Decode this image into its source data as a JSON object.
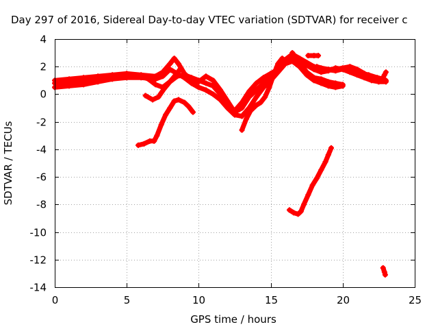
{
  "chart_data": {
    "type": "scatter",
    "title": "Day 297 of 2016, Sidereal Day-to-day VTEC variation (SDTVAR) for receiver c",
    "xlabel": "GPS time / hours",
    "ylabel": "SDTVAR / TECUs",
    "xlim": [
      0,
      25
    ],
    "ylim": [
      -14,
      4
    ],
    "xticks": [
      "0",
      "5",
      "10",
      "15",
      "20",
      "25"
    ],
    "yticks": [
      "4",
      "2",
      "0",
      "-2",
      "-4",
      "-6",
      "-8",
      "-10",
      "-12",
      "-14"
    ],
    "grid": true,
    "legend": "none",
    "marker_color": "#ff0000",
    "series": [
      {
        "points": [
          [
            0,
            1.0
          ],
          [
            1.0,
            1.1
          ],
          [
            2.0,
            1.2
          ],
          [
            3.0,
            1.3
          ],
          [
            4.0,
            1.4
          ],
          [
            5.0,
            1.5
          ],
          [
            6.0,
            1.4
          ],
          [
            7.0,
            1.3
          ],
          [
            7.5,
            1.6
          ],
          [
            8.0,
            2.2
          ],
          [
            8.3,
            2.6
          ],
          [
            8.6,
            2.2
          ],
          [
            9.0,
            1.5
          ],
          [
            9.5,
            1.0
          ],
          [
            10.0,
            0.9
          ],
          [
            10.5,
            1.3
          ],
          [
            11.0,
            1.0
          ],
          [
            11.5,
            0.3
          ],
          [
            12.0,
            -0.5
          ],
          [
            12.5,
            -1.3
          ],
          [
            13.0,
            -1.0
          ],
          [
            13.5,
            -0.2
          ],
          [
            14.0,
            0.3
          ],
          [
            14.5,
            0.8
          ],
          [
            15.0,
            1.3
          ],
          [
            15.5,
            1.9
          ],
          [
            16.0,
            2.4
          ],
          [
            16.5,
            2.6
          ],
          [
            17.0,
            2.4
          ],
          [
            17.5,
            2.1
          ],
          [
            18.0,
            1.8
          ],
          [
            18.5,
            1.6
          ],
          [
            19.0,
            1.7
          ],
          [
            19.5,
            1.9
          ],
          [
            20.0,
            1.8
          ],
          [
            20.5,
            1.6
          ],
          [
            21.0,
            1.4
          ],
          [
            21.5,
            1.2
          ],
          [
            22.0,
            1.0
          ],
          [
            22.5,
            0.9
          ],
          [
            23.0,
            0.9
          ]
        ]
      },
      {
        "points": [
          [
            0,
            0.5
          ],
          [
            1.0,
            0.6
          ],
          [
            2.0,
            0.7
          ],
          [
            3.0,
            0.9
          ],
          [
            4.0,
            1.1
          ],
          [
            5.0,
            1.2
          ],
          [
            6.0,
            1.2
          ],
          [
            7.0,
            1.1
          ],
          [
            7.5,
            1.3
          ],
          [
            8.0,
            1.8
          ],
          [
            8.5,
            1.5
          ],
          [
            9.0,
            1.2
          ],
          [
            9.5,
            0.8
          ],
          [
            10.0,
            0.5
          ],
          [
            10.5,
            0.3
          ],
          [
            11.0,
            0.0
          ],
          [
            11.5,
            -0.4
          ],
          [
            12.0,
            -1.0
          ],
          [
            12.5,
            -1.5
          ],
          [
            13.0,
            -1.6
          ],
          [
            13.5,
            -1.0
          ],
          [
            14.0,
            -0.2
          ],
          [
            14.5,
            0.5
          ],
          [
            15.0,
            1.0
          ],
          [
            15.5,
            1.6
          ],
          [
            16.0,
            2.2
          ],
          [
            16.5,
            2.4
          ],
          [
            17.0,
            2.0
          ],
          [
            17.5,
            1.4
          ],
          [
            18.0,
            1.0
          ],
          [
            18.5,
            0.8
          ],
          [
            19.0,
            0.6
          ],
          [
            19.5,
            0.5
          ],
          [
            20.0,
            0.6
          ]
        ]
      },
      {
        "points": [
          [
            0,
            0.8
          ],
          [
            1.0,
            0.9
          ],
          [
            2.0,
            1.0
          ],
          [
            3.0,
            1.1
          ],
          [
            4.0,
            1.3
          ],
          [
            5.0,
            1.4
          ],
          [
            6.0,
            1.3
          ],
          [
            6.5,
            1.1
          ],
          [
            7.0,
            0.7
          ],
          [
            7.5,
            0.5
          ],
          [
            8.0,
            0.9
          ],
          [
            8.5,
            1.3
          ],
          [
            9.0,
            1.4
          ],
          [
            9.5,
            1.2
          ],
          [
            10.0,
            1.0
          ],
          [
            10.5,
            0.8
          ],
          [
            11.0,
            0.6
          ],
          [
            11.5,
            0.0
          ],
          [
            12.0,
            -0.8
          ],
          [
            12.5,
            -1.2
          ],
          [
            13.0,
            -0.6
          ],
          [
            13.5,
            0.2
          ],
          [
            14.0,
            0.8
          ],
          [
            14.5,
            1.2
          ],
          [
            15.0,
            1.5
          ],
          [
            15.5,
            1.8
          ],
          [
            16.0,
            2.5
          ],
          [
            16.5,
            2.9
          ],
          [
            17.0,
            2.6
          ],
          [
            17.5,
            2.3
          ],
          [
            18.0,
            2.0
          ],
          [
            18.5,
            1.9
          ],
          [
            19.0,
            1.8
          ],
          [
            19.5,
            1.8
          ],
          [
            20.0,
            1.9
          ],
          [
            20.5,
            2.0
          ],
          [
            21.0,
            1.8
          ],
          [
            21.5,
            1.5
          ],
          [
            22.0,
            1.2
          ],
          [
            22.5,
            1.0
          ],
          [
            23.0,
            1.0
          ]
        ]
      },
      {
        "points": [
          [
            6.3,
            -0.1
          ],
          [
            6.8,
            -0.4
          ],
          [
            7.2,
            -0.2
          ],
          [
            7.6,
            0.4
          ],
          [
            8.0,
            0.9
          ],
          [
            8.4,
            1.4
          ],
          [
            8.7,
            1.8
          ]
        ]
      },
      {
        "points": [
          [
            13.0,
            -2.6
          ],
          [
            13.3,
            -1.8
          ],
          [
            13.6,
            -1.2
          ],
          [
            14.0,
            -0.8
          ],
          [
            14.3,
            -0.6
          ],
          [
            14.6,
            -0.2
          ],
          [
            14.9,
            0.5
          ],
          [
            15.2,
            1.4
          ],
          [
            15.5,
            2.2
          ],
          [
            15.8,
            2.6
          ]
        ]
      },
      {
        "points": [
          [
            16.5,
            3.0
          ],
          [
            17.0,
            2.3
          ],
          [
            17.5,
            1.6
          ],
          [
            18.0,
            1.2
          ],
          [
            18.5,
            1.1
          ],
          [
            19.0,
            0.9
          ],
          [
            19.5,
            0.8
          ],
          [
            20.0,
            0.7
          ]
        ]
      },
      {
        "points": [
          [
            17.6,
            2.8
          ],
          [
            18.0,
            2.8
          ],
          [
            18.3,
            2.8
          ]
        ]
      },
      {
        "points": [
          [
            18.2,
            2.0
          ],
          [
            18.8,
            1.8
          ],
          [
            19.5,
            1.7
          ],
          [
            20.3,
            1.9
          ],
          [
            21.0,
            1.6
          ],
          [
            21.8,
            1.4
          ],
          [
            22.4,
            1.2
          ],
          [
            22.8,
            1.1
          ]
        ]
      },
      {
        "points": [
          [
            22.8,
            1.2
          ],
          [
            22.9,
            1.4
          ],
          [
            23.0,
            1.6
          ]
        ]
      },
      {
        "points": [
          [
            5.8,
            -3.7
          ],
          [
            6.2,
            -3.6
          ],
          [
            6.6,
            -3.4
          ],
          [
            6.9,
            -3.4
          ],
          [
            7.1,
            -3.0
          ],
          [
            7.4,
            -2.2
          ],
          [
            7.7,
            -1.5
          ],
          [
            8.0,
            -1.0
          ],
          [
            8.3,
            -0.5
          ],
          [
            8.6,
            -0.4
          ],
          [
            9.0,
            -0.6
          ],
          [
            9.3,
            -0.9
          ],
          [
            9.6,
            -1.3
          ]
        ]
      },
      {
        "points": [
          [
            16.3,
            -8.4
          ],
          [
            16.6,
            -8.6
          ],
          [
            16.9,
            -8.7
          ],
          [
            17.1,
            -8.5
          ],
          [
            17.3,
            -8.0
          ],
          [
            17.6,
            -7.3
          ],
          [
            17.9,
            -6.6
          ],
          [
            18.2,
            -6.1
          ],
          [
            18.5,
            -5.5
          ],
          [
            18.8,
            -4.9
          ],
          [
            19.0,
            -4.4
          ],
          [
            19.2,
            -3.9
          ]
        ]
      },
      {
        "points": [
          [
            22.8,
            -12.6
          ],
          [
            22.9,
            -12.9
          ],
          [
            22.95,
            -13.1
          ]
        ]
      }
    ]
  }
}
